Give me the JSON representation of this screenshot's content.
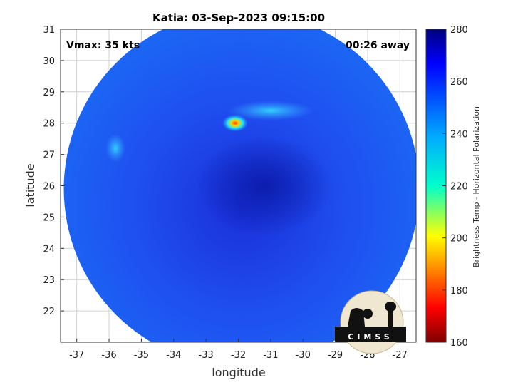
{
  "chart_data": {
    "type": "heatmap",
    "title": "Katia: 03-Sep-2023 09:15:00",
    "annotations": {
      "vmax": "Vmax: 35 kts",
      "away": "00:26 away"
    },
    "xlabel": "longitude",
    "ylabel": "latitude",
    "xlim": [
      -37.5,
      -26.5
    ],
    "ylim": [
      21,
      31
    ],
    "xticks": [
      -37,
      -36,
      -35,
      -34,
      -33,
      -32,
      -31,
      -30,
      -29,
      -28,
      -27
    ],
    "yticks": [
      22,
      23,
      24,
      25,
      26,
      27,
      28,
      29,
      30,
      31
    ],
    "grid": true,
    "swath": {
      "center_lon": -31.9,
      "center_lat": 25.9,
      "radius_lon": 5.5
    },
    "features": [
      {
        "label": "",
        "lon": -32.1,
        "lat": 28.0,
        "value": 190
      },
      {
        "label": "",
        "lon": -31.0,
        "lat": 28.4,
        "value": 240
      },
      {
        "label": "",
        "lon": -35.8,
        "lat": 27.2,
        "value": 245
      },
      {
        "label": "",
        "lon": -31.2,
        "lat": 26.0,
        "value": 275
      }
    ],
    "background_value": 262,
    "colorbar": {
      "label": "Brightness Temp - Horizontal Polarization",
      "range": [
        160,
        280
      ],
      "ticks": [
        160,
        180,
        200,
        220,
        240,
        260,
        280
      ],
      "colormap": "jet"
    },
    "logo": {
      "text": "CIMSS"
    }
  }
}
